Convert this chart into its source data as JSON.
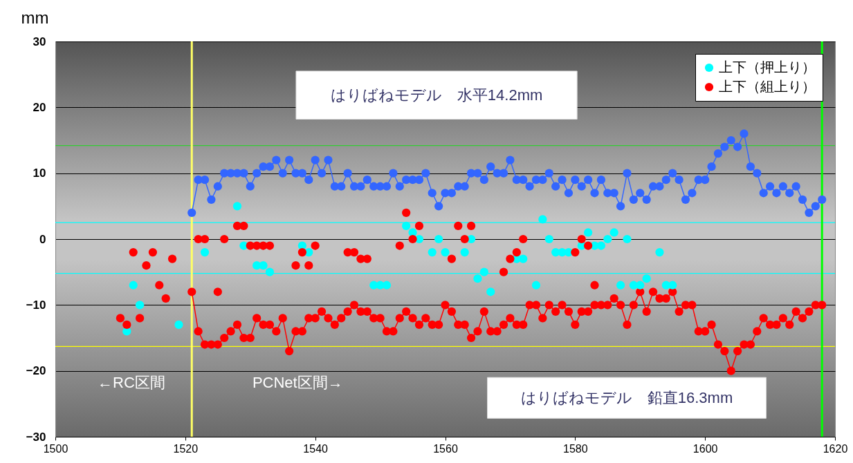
{
  "chart_data": {
    "type": "line",
    "xlim": [
      1500,
      1620
    ],
    "xticks": [
      1500,
      1520,
      1540,
      1560,
      1580,
      1600,
      1620
    ],
    "ylim": [
      -30,
      30
    ],
    "yticks": [
      -30,
      -20,
      -10,
      0,
      10,
      20,
      30
    ],
    "ylabel": "mm",
    "grid": "y",
    "legend": "top right",
    "marker": "circle",
    "line_style": "solid",
    "x": [
      1521,
      1522,
      1523,
      1524,
      1525,
      1526,
      1527,
      1528,
      1529,
      1530,
      1531,
      1532,
      1533,
      1534,
      1535,
      1536,
      1537,
      1538,
      1539,
      1540,
      1541,
      1542,
      1543,
      1544,
      1545,
      1546,
      1547,
      1548,
      1549,
      1550,
      1551,
      1552,
      1553,
      1554,
      1555,
      1556,
      1557,
      1558,
      1559,
      1560,
      1561,
      1562,
      1563,
      1564,
      1565,
      1566,
      1567,
      1568,
      1569,
      1570,
      1571,
      1572,
      1573,
      1574,
      1575,
      1576,
      1577,
      1578,
      1579,
      1580,
      1581,
      1582,
      1583,
      1584,
      1585,
      1586,
      1587,
      1588,
      1589,
      1590,
      1591,
      1592,
      1593,
      1594,
      1595,
      1596,
      1597,
      1598,
      1599,
      1600,
      1601,
      1602,
      1603,
      1604,
      1605,
      1606,
      1607,
      1608,
      1609,
      1610,
      1611,
      1612,
      1613,
      1614,
      1615,
      1616,
      1617,
      1618
    ],
    "series": [
      {
        "type": "line",
        "color": "#3366ff",
        "values": [
          4,
          9,
          9,
          6,
          8,
          10,
          10,
          10,
          10,
          8,
          10,
          11,
          11,
          12,
          10,
          12,
          10,
          10,
          9,
          12,
          10,
          12,
          8,
          8,
          10,
          8,
          8,
          9,
          8,
          8,
          8,
          10,
          8,
          9,
          9,
          9,
          10,
          7,
          5,
          7,
          7,
          8,
          8,
          10,
          10,
          9,
          11,
          10,
          10,
          12,
          9,
          9,
          8,
          9,
          9,
          10,
          8,
          9,
          7,
          9,
          8,
          9,
          7,
          9,
          7,
          7,
          5,
          10,
          6,
          7,
          6,
          8,
          8,
          9,
          10,
          9,
          6,
          7,
          9,
          9,
          11,
          13,
          14,
          15,
          14,
          16,
          11,
          10,
          7,
          8,
          7,
          8,
          7,
          8,
          6,
          4,
          5,
          6
        ]
      },
      {
        "type": "line",
        "color": "#ff0000",
        "values": [
          -8,
          -14,
          -16,
          -16,
          -16,
          -15,
          -14,
          -13,
          -15,
          -15,
          -12,
          -13,
          -13,
          -14,
          -12,
          -17,
          -14,
          -14,
          -12,
          -12,
          -11,
          -12,
          -13,
          -12,
          -11,
          -10,
          -11,
          -11,
          -12,
          -12,
          -14,
          -14,
          -12,
          -11,
          -12,
          -13,
          -12,
          -13,
          -13,
          -10,
          -11,
          -13,
          -13,
          -15,
          -14,
          -11,
          -14,
          -14,
          -13,
          -12,
          -13,
          -13,
          -10,
          -10,
          -12,
          -10,
          -11,
          -10,
          -11,
          -13,
          -11,
          -11,
          -10,
          -10,
          -10,
          -9,
          -10,
          -13,
          -10,
          -8,
          -11,
          -8,
          -9,
          -9,
          -8,
          -11,
          -10,
          -10,
          -14,
          -14,
          -13,
          -16,
          -17,
          -20,
          -17,
          -16,
          -16,
          -14,
          -12,
          -13,
          -13,
          -12,
          -13,
          -11,
          -12,
          -11,
          -10,
          -10
        ]
      },
      {
        "type": "scatter",
        "name": "上下（押上り）",
        "color": "#00ffff",
        "x": [
          1511,
          1512,
          1513,
          1519,
          1523,
          1528,
          1529,
          1531,
          1532,
          1533,
          1538,
          1539,
          1549,
          1550,
          1551,
          1554,
          1555,
          1556,
          1558,
          1559,
          1560,
          1563,
          1564,
          1565,
          1566,
          1567,
          1571,
          1572,
          1574,
          1575,
          1576,
          1577,
          1578,
          1579,
          1581,
          1582,
          1583,
          1584,
          1585,
          1586,
          1587,
          1588,
          1589,
          1590,
          1591,
          1593,
          1594,
          1595
        ],
        "values": [
          -14,
          -7,
          -10,
          -13,
          -2,
          5,
          -1,
          -4,
          -4,
          -5,
          -1,
          -2,
          -7,
          -7,
          -7,
          2,
          1,
          0,
          -2,
          0,
          -2,
          -2,
          0,
          -6,
          -5,
          -8,
          -3,
          -3,
          -7,
          3,
          0,
          -2,
          -2,
          -2,
          -1,
          1,
          -1,
          -1,
          0,
          1,
          -7,
          0,
          -7,
          -7,
          -6,
          -2,
          -7,
          -7
        ]
      },
      {
        "type": "scatter",
        "name": "上下（組上り）",
        "color": "#ff0000",
        "x": [
          1510,
          1511,
          1512,
          1513,
          1514,
          1515,
          1516,
          1517,
          1518,
          1522,
          1523,
          1525,
          1526,
          1528,
          1529,
          1530,
          1531,
          1532,
          1533,
          1537,
          1538,
          1539,
          1540,
          1545,
          1546,
          1547,
          1548,
          1553,
          1554,
          1555,
          1556,
          1561,
          1562,
          1563,
          1564,
          1569,
          1570,
          1571,
          1572,
          1580,
          1581,
          1582,
          1583
        ],
        "values": [
          -12,
          -13,
          -2,
          -12,
          -4,
          -2,
          -7,
          -9,
          -3,
          0,
          0,
          -8,
          0,
          2,
          2,
          -1,
          -1,
          -1,
          -1,
          -4,
          -2,
          -4,
          -1,
          -2,
          -2,
          -3,
          -3,
          -1,
          4,
          0,
          2,
          -3,
          2,
          0,
          2,
          -5,
          -3,
          -2,
          0,
          -2,
          0,
          -1,
          -7
        ]
      }
    ],
    "ref_lines": [
      {
        "axis": "y",
        "value": 14.2,
        "color": "#33cc33"
      },
      {
        "axis": "y",
        "value": 2.5,
        "color": "#00ffff"
      },
      {
        "axis": "y",
        "value": -5.2,
        "color": "#00ffff"
      },
      {
        "axis": "y",
        "value": -16.3,
        "color": "#ffff00"
      },
      {
        "axis": "x",
        "value": 1521,
        "color": "#ffff66"
      },
      {
        "axis": "x",
        "value": 1618,
        "color": "#00ff00"
      }
    ],
    "annotations": [
      "はりばねモデル　水平14.2mm",
      "はりばねモデル　鉛直16.3mm",
      "←RC区間",
      "PCNet区間→"
    ]
  }
}
